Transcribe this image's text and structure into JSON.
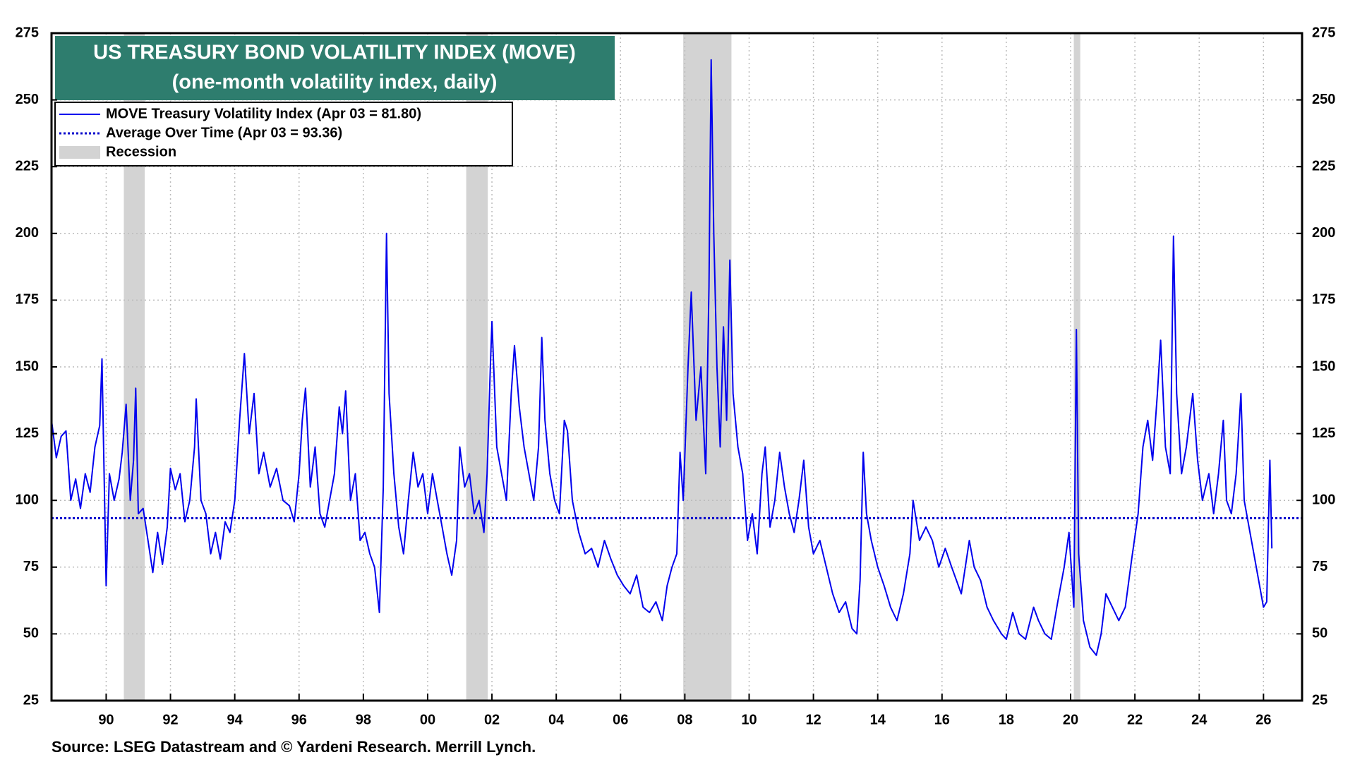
{
  "chart_data": {
    "type": "line",
    "title": "US TREASURY BOND VOLATILITY INDEX (MOVE)",
    "subtitle": "(one-month volatility index, daily)",
    "source": "Source: LSEG Datastream and © Yardeni Research. Merrill Lynch.",
    "xlim": [
      1988.3,
      2027.2
    ],
    "xticks": [
      {
        "value": 1990,
        "label": "90"
      },
      {
        "value": 1992,
        "label": "92"
      },
      {
        "value": 1994,
        "label": "94"
      },
      {
        "value": 1996,
        "label": "96"
      },
      {
        "value": 1998,
        "label": "98"
      },
      {
        "value": 2000,
        "label": "00"
      },
      {
        "value": 2002,
        "label": "02"
      },
      {
        "value": 2004,
        "label": "04"
      },
      {
        "value": 2006,
        "label": "06"
      },
      {
        "value": 2008,
        "label": "08"
      },
      {
        "value": 2010,
        "label": "10"
      },
      {
        "value": 2012,
        "label": "12"
      },
      {
        "value": 2014,
        "label": "14"
      },
      {
        "value": 2016,
        "label": "16"
      },
      {
        "value": 2018,
        "label": "18"
      },
      {
        "value": 2020,
        "label": "20"
      },
      {
        "value": 2022,
        "label": "22"
      },
      {
        "value": 2024,
        "label": "24"
      },
      {
        "value": 2026,
        "label": "26"
      }
    ],
    "ylim": [
      25,
      275
    ],
    "yticks": [
      25,
      50,
      75,
      100,
      125,
      150,
      175,
      200,
      225,
      250,
      275
    ],
    "grid": true,
    "x": [
      1988.3,
      1988.45,
      1988.6,
      1988.75,
      1988.9,
      1989.05,
      1989.2,
      1989.35,
      1989.5,
      1989.65,
      1989.8,
      1989.87,
      1989.95,
      1990.0,
      1990.1,
      1990.25,
      1990.4,
      1990.5,
      1990.62,
      1990.75,
      1990.85,
      1990.92,
      1991.0,
      1991.15,
      1991.3,
      1991.45,
      1991.6,
      1991.75,
      1991.9,
      1992.0,
      1992.15,
      1992.3,
      1992.45,
      1992.6,
      1992.75,
      1992.8,
      1992.95,
      1993.1,
      1993.25,
      1993.4,
      1993.55,
      1993.7,
      1993.85,
      1994.0,
      1994.15,
      1994.3,
      1994.45,
      1994.6,
      1994.75,
      1994.9,
      1995.1,
      1995.3,
      1995.5,
      1995.7,
      1995.85,
      1996.0,
      1996.1,
      1996.2,
      1996.35,
      1996.5,
      1996.65,
      1996.8,
      1996.95,
      1997.1,
      1997.25,
      1997.35,
      1997.45,
      1997.6,
      1997.75,
      1997.9,
      1998.05,
      1998.2,
      1998.35,
      1998.5,
      1998.62,
      1998.72,
      1998.8,
      1998.95,
      1999.1,
      1999.25,
      1999.4,
      1999.55,
      1999.7,
      1999.85,
      2000.0,
      2000.15,
      2000.3,
      2000.45,
      2000.6,
      2000.75,
      2000.9,
      2001.0,
      2001.15,
      2001.3,
      2001.45,
      2001.6,
      2001.75,
      2001.85,
      2001.95,
      2002.0,
      2002.15,
      2002.3,
      2002.45,
      2002.6,
      2002.7,
      2002.85,
      2003.0,
      2003.15,
      2003.3,
      2003.45,
      2003.55,
      2003.65,
      2003.8,
      2003.95,
      2004.1,
      2004.25,
      2004.35,
      2004.5,
      2004.7,
      2004.9,
      2005.1,
      2005.3,
      2005.5,
      2005.7,
      2005.9,
      2006.1,
      2006.3,
      2006.5,
      2006.7,
      2006.9,
      2007.1,
      2007.3,
      2007.45,
      2007.6,
      2007.75,
      2007.85,
      2007.95,
      2008.1,
      2008.2,
      2008.35,
      2008.5,
      2008.65,
      2008.75,
      2008.82,
      2008.9,
      2009.0,
      2009.1,
      2009.2,
      2009.3,
      2009.4,
      2009.5,
      2009.65,
      2009.8,
      2009.95,
      2010.1,
      2010.25,
      2010.4,
      2010.5,
      2010.65,
      2010.8,
      2010.95,
      2011.1,
      2011.25,
      2011.4,
      2011.55,
      2011.7,
      2011.85,
      2012.0,
      2012.2,
      2012.4,
      2012.6,
      2012.8,
      2013.0,
      2013.2,
      2013.35,
      2013.45,
      2013.55,
      2013.65,
      2013.8,
      2014.0,
      2014.2,
      2014.4,
      2014.6,
      2014.8,
      2015.0,
      2015.1,
      2015.3,
      2015.5,
      2015.7,
      2015.9,
      2016.1,
      2016.3,
      2016.45,
      2016.6,
      2016.85,
      2017.0,
      2017.2,
      2017.4,
      2017.6,
      2017.85,
      2018.0,
      2018.2,
      2018.4,
      2018.6,
      2018.85,
      2019.0,
      2019.2,
      2019.4,
      2019.6,
      2019.8,
      2019.95,
      2020.1,
      2020.18,
      2020.25,
      2020.4,
      2020.6,
      2020.8,
      2020.95,
      2021.1,
      2021.3,
      2021.5,
      2021.7,
      2021.9,
      2022.1,
      2022.25,
      2022.4,
      2022.55,
      2022.7,
      2022.8,
      2022.95,
      2023.1,
      2023.2,
      2023.3,
      2023.45,
      2023.6,
      2023.8,
      2023.95,
      2024.1,
      2024.3,
      2024.45,
      2024.6,
      2024.75,
      2024.85,
      2025.0,
      2025.15,
      2025.3,
      2025.4,
      2025.55,
      2025.7,
      2025.85,
      2026.0,
      2026.1,
      2026.2,
      2026.26
    ],
    "series": [
      {
        "name": "MOVE Treasury Volatility Index (Apr 03 = 81.80)",
        "color": "#0000ee",
        "values": [
          130,
          116,
          124,
          126,
          100,
          108,
          97,
          110,
          103,
          120,
          128,
          153,
          100,
          68,
          110,
          100,
          108,
          118,
          136,
          100,
          115,
          142,
          95,
          97,
          85,
          73,
          88,
          76,
          90,
          112,
          104,
          110,
          92,
          100,
          120,
          138,
          100,
          95,
          80,
          88,
          78,
          92,
          88,
          100,
          130,
          155,
          125,
          140,
          110,
          118,
          105,
          112,
          100,
          98,
          92,
          110,
          130,
          142,
          105,
          120,
          95,
          90,
          100,
          110,
          135,
          125,
          141,
          100,
          110,
          85,
          88,
          80,
          75,
          58,
          105,
          200,
          140,
          110,
          90,
          80,
          100,
          118,
          105,
          110,
          95,
          110,
          100,
          90,
          80,
          72,
          85,
          120,
          105,
          110,
          95,
          100,
          88,
          110,
          150,
          167,
          120,
          110,
          100,
          140,
          158,
          135,
          120,
          110,
          100,
          120,
          161,
          130,
          110,
          100,
          95,
          130,
          126,
          100,
          88,
          80,
          82,
          75,
          85,
          78,
          72,
          68,
          65,
          72,
          60,
          58,
          62,
          55,
          68,
          75,
          80,
          118,
          100,
          150,
          178,
          130,
          150,
          110,
          180,
          265,
          200,
          150,
          120,
          165,
          130,
          190,
          140,
          120,
          110,
          85,
          95,
          80,
          110,
          120,
          90,
          100,
          118,
          105,
          95,
          88,
          100,
          115,
          90,
          80,
          85,
          75,
          65,
          58,
          62,
          52,
          50,
          70,
          118,
          95,
          85,
          75,
          68,
          60,
          55,
          65,
          80,
          100,
          85,
          90,
          85,
          75,
          82,
          75,
          70,
          65,
          85,
          75,
          70,
          60,
          55,
          50,
          48,
          58,
          50,
          48,
          60,
          55,
          50,
          48,
          62,
          75,
          88,
          60,
          164,
          80,
          55,
          45,
          42,
          50,
          65,
          60,
          55,
          60,
          78,
          95,
          120,
          130,
          115,
          140,
          160,
          120,
          110,
          199,
          140,
          110,
          120,
          140,
          115,
          100,
          110,
          95,
          110,
          130,
          100,
          95,
          110,
          140,
          100,
          90,
          80,
          70,
          60,
          62,
          115,
          82
        ]
      }
    ],
    "average": {
      "name": "Average Over Time (Apr 03 = 93.36)",
      "value": 93.36,
      "color": "#0000cc"
    },
    "recessions": {
      "name": "Recession",
      "color": "#d3d3d3",
      "periods": [
        [
          1990.55,
          1991.2
        ],
        [
          2001.2,
          2001.87
        ],
        [
          2007.95,
          2009.45
        ],
        [
          2020.1,
          2020.3
        ]
      ]
    }
  }
}
